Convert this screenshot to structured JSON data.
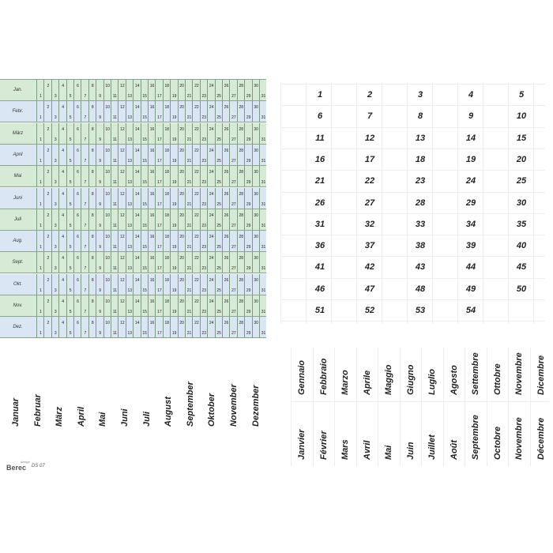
{
  "planner": {
    "months": [
      "Jan.",
      "Febr.",
      "März",
      "April",
      "Mai",
      "Juni",
      "Juli",
      "Aug.",
      "Sept.",
      "Okt.",
      "Nov.",
      "Dez."
    ],
    "days": [
      "1",
      "2",
      "3",
      "4",
      "5",
      "6",
      "7",
      "8",
      "9",
      "10",
      "11",
      "12",
      "13",
      "14",
      "15",
      "16",
      "17",
      "18",
      "19",
      "20",
      "21",
      "22",
      "23",
      "24",
      "25",
      "26",
      "27",
      "28",
      "29",
      "30",
      "31"
    ],
    "row_colors": [
      "#d6ead5",
      "#dbe6f5"
    ]
  },
  "german_months": [
    "Januar",
    "Februar",
    "März",
    "April",
    "Mai",
    "Juni",
    "Juli",
    "August",
    "September",
    "Oktober",
    "November",
    "Dezember"
  ],
  "italian_months": [
    "Gennaio",
    "Febbraio",
    "Marzo",
    "Aprile",
    "Maggio",
    "Giugno",
    "Luglio",
    "Agosto",
    "Settembre",
    "Ottobre",
    "Novembre",
    "Dicembre"
  ],
  "french_months": [
    "Janvier",
    "Février",
    "Mars",
    "Avril",
    "Mai",
    "Juin",
    "Juillet",
    "Août",
    "Septembre",
    "Octobre",
    "Novembre",
    "Décembre"
  ],
  "week_numbers": [
    "1",
    "2",
    "3",
    "4",
    "5",
    "6",
    "7",
    "8",
    "9",
    "10",
    "11",
    "12",
    "13",
    "14",
    "15",
    "16",
    "17",
    "18",
    "19",
    "20",
    "21",
    "22",
    "23",
    "24",
    "25",
    "26",
    "27",
    "28",
    "29",
    "30",
    "31",
    "32",
    "33",
    "34",
    "35",
    "36",
    "37",
    "38",
    "39",
    "40",
    "41",
    "42",
    "43",
    "44",
    "45",
    "46",
    "47",
    "48",
    "49",
    "50",
    "51",
    "52",
    "53",
    "54"
  ],
  "logo": {
    "design_text": "design",
    "brand": "Berec",
    "code": "DS 07"
  }
}
